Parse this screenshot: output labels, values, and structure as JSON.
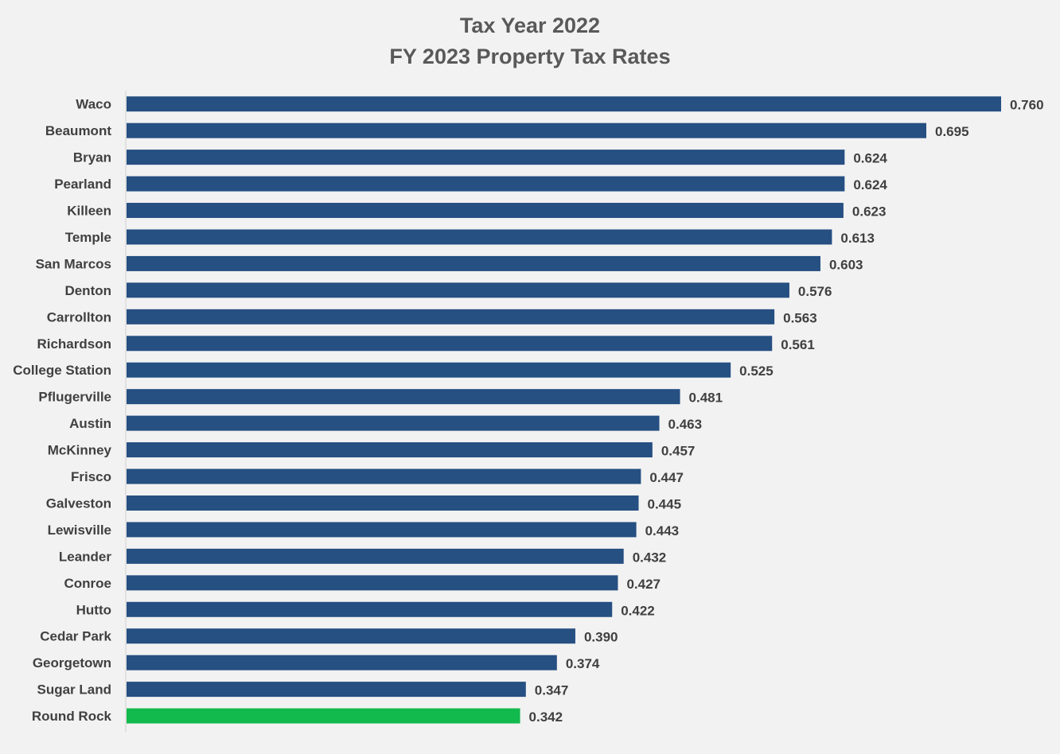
{
  "chart_data": {
    "type": "bar",
    "orientation": "horizontal",
    "title": "Tax Year 2022",
    "subtitle": "FY 2023 Property Tax Rates",
    "categories": [
      "Waco",
      "Beaumont",
      "Bryan",
      "Pearland",
      "Killeen",
      "Temple",
      "San Marcos",
      "Denton",
      "Carrollton",
      "Richardson",
      "College Station",
      "Pflugerville",
      "Austin",
      "McKinney",
      "Frisco",
      "Galveston",
      "Lewisville",
      "Leander",
      "Conroe",
      "Hutto",
      "Cedar Park",
      "Georgetown",
      "Sugar Land",
      "Round Rock"
    ],
    "values": [
      0.76,
      0.695,
      0.624,
      0.624,
      0.623,
      0.613,
      0.603,
      0.576,
      0.563,
      0.561,
      0.525,
      0.481,
      0.463,
      0.457,
      0.447,
      0.445,
      0.443,
      0.432,
      0.427,
      0.422,
      0.39,
      0.374,
      0.347,
      0.342
    ],
    "value_labels": [
      "0.760",
      "0.695",
      "0.624",
      "0.624",
      "0.623",
      "0.613",
      "0.603",
      "0.576",
      "0.563",
      "0.561",
      "0.525",
      "0.481",
      "0.463",
      "0.457",
      "0.447",
      "0.445",
      "0.443",
      "0.432",
      "0.427",
      "0.422",
      "0.390",
      "0.374",
      "0.347",
      "0.342"
    ],
    "highlight_category": "Round Rock",
    "xlim": [
      0,
      0.76
    ],
    "xlabel": "",
    "ylabel": "",
    "grid": false,
    "legend": "none",
    "colors": {
      "bar": "#264f82",
      "highlight": "#12b94c",
      "label": "#404040",
      "title": "#595959",
      "axis": "#d0d0d0",
      "background": "#f2f2f2"
    }
  }
}
